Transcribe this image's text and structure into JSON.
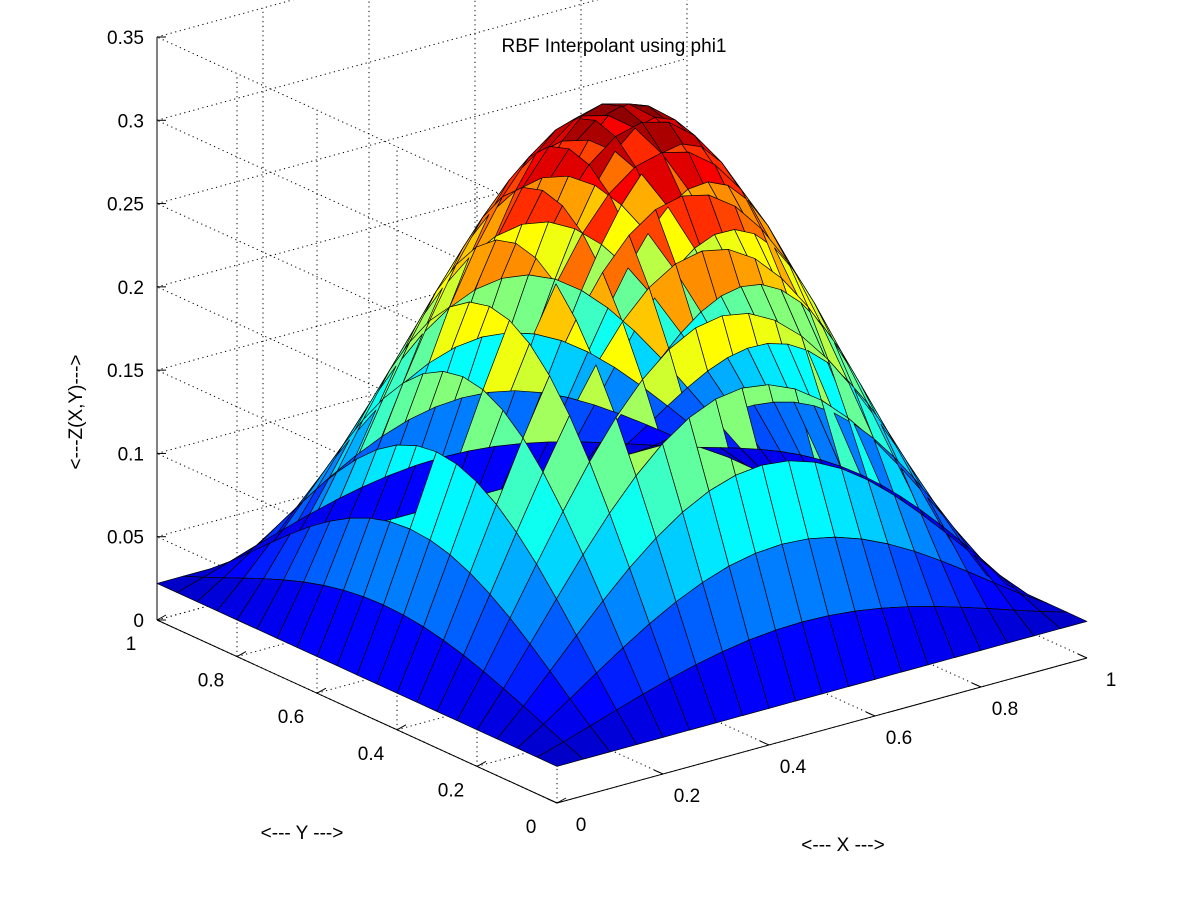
{
  "chart_data": {
    "type": "surface",
    "title": "RBF Interpolant using phi1",
    "xlabel": "<--- X --->",
    "ylabel": "<--- Y --->",
    "zlabel": "<---Z(X,Y)--->",
    "xlim": [
      0,
      1
    ],
    "ylim": [
      0,
      1
    ],
    "zlim": [
      0,
      0.35
    ],
    "x_ticks": [
      "0",
      "0.2",
      "0.4",
      "0.6",
      "0.8",
      "1"
    ],
    "y_ticks": [
      "0",
      "0.2",
      "0.4",
      "0.6",
      "0.8",
      "1"
    ],
    "z_ticks": [
      "0",
      "0.05",
      "0.1",
      "0.15",
      "0.2",
      "0.25",
      "0.3",
      "0.35"
    ],
    "grid": true,
    "colormap": "jet",
    "grid_size": 20,
    "peak": {
      "x": 0.5,
      "y": 0.5,
      "z": 0.32
    },
    "corner_values": {
      "x0_y0": 0.03,
      "x1_y0": 0.022,
      "x0_y1": 0.022,
      "x1_y1": 0.024
    }
  }
}
